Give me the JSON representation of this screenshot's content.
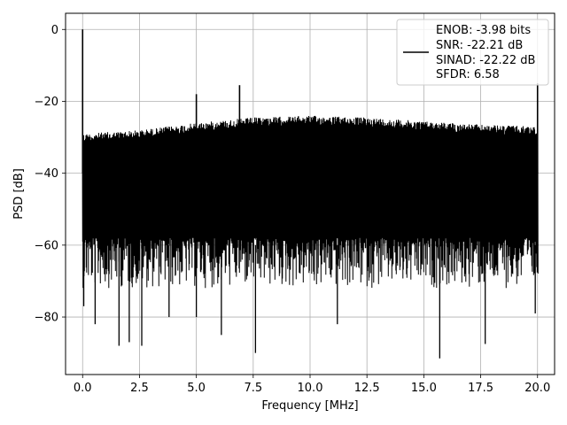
{
  "chart_data": {
    "type": "line",
    "title": "",
    "xlabel": "Frequency [MHz]",
    "ylabel": "PSD [dB]",
    "xlim": [
      -0.75,
      20.75
    ],
    "ylim": [
      -96,
      4.5
    ],
    "xticks": [
      0,
      2.5,
      5,
      7.5,
      10,
      12.5,
      15,
      17.5,
      20
    ],
    "xtick_labels": [
      "0.0",
      "2.5",
      "5.0",
      "7.5",
      "10.0",
      "12.5",
      "15.0",
      "17.5",
      "20.0"
    ],
    "yticks": [
      0,
      -20,
      -40,
      -60,
      -80
    ],
    "ytick_labels": [
      "0",
      "−20",
      "−40",
      "−60",
      "−80"
    ],
    "grid": true,
    "legend_position": "top-right",
    "line_color": "#000000",
    "series": [
      {
        "name": "",
        "x_range": [
          0,
          20
        ],
        "noise_ceiling_db": [
          [
            0,
            -29
          ],
          [
            2.5,
            -28
          ],
          [
            5,
            -26
          ],
          [
            7.5,
            -24.5
          ],
          [
            10,
            -24
          ],
          [
            12.5,
            -24.5
          ],
          [
            15,
            -25.5
          ],
          [
            17.5,
            -26.5
          ],
          [
            20,
            -27
          ]
        ],
        "noise_floor_db": -60,
        "spurs": [
          {
            "x": 0.0,
            "y": 0.0
          },
          {
            "x": 5.0,
            "y": -18
          },
          {
            "x": 6.9,
            "y": -15.5
          },
          {
            "x": 20.0,
            "y": -15
          }
        ],
        "dips": [
          {
            "x": 0.05,
            "y": -77
          },
          {
            "x": 0.55,
            "y": -82
          },
          {
            "x": 1.6,
            "y": -88
          },
          {
            "x": 2.05,
            "y": -87
          },
          {
            "x": 2.6,
            "y": -88
          },
          {
            "x": 3.8,
            "y": -80
          },
          {
            "x": 5.0,
            "y": -80
          },
          {
            "x": 6.1,
            "y": -85
          },
          {
            "x": 7.6,
            "y": -90
          },
          {
            "x": 11.2,
            "y": -82
          },
          {
            "x": 15.7,
            "y": -91.5
          },
          {
            "x": 17.7,
            "y": -87.5
          },
          {
            "x": 19.9,
            "y": -79
          }
        ]
      }
    ],
    "legend_entries": [
      "ENOB: -3.98 bits",
      "SNR: -22.21 dB",
      "SINAD: -22.22 dB",
      "SFDR: 6.58"
    ]
  }
}
